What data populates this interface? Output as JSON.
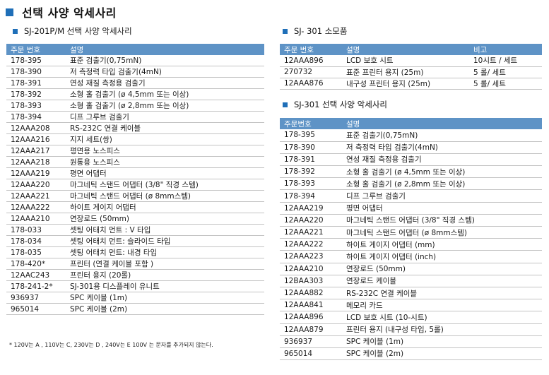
{
  "title": "선택 사양 악세사리",
  "left_section": {
    "title": "SJ-201P/M 선택 사양 악세사리",
    "headers": [
      "주문 번호",
      "설명"
    ],
    "rows": [
      [
        "178-395",
        "표준 검출기(0,75mN)"
      ],
      [
        "178-390",
        "저 측정력 타입 검출기(4mN)"
      ],
      [
        "178-391",
        "연성 재질 측정용 검출기"
      ],
      [
        "178-392",
        "소형 홀 검출기 (ø 4,5mm 또는 이상)"
      ],
      [
        "178-393",
        "소형 홀 검출기 (ø 2,8mm 또는 이상)"
      ],
      [
        "178-394",
        "디프 그루브 검출기"
      ],
      [
        "12AAA208",
        "RS-232C 연결 케이블"
      ],
      [
        "12AAA216",
        "지지 세트(쌍)"
      ],
      [
        "12AAA217",
        "평면용 노스피스"
      ],
      [
        "12AAA218",
        "원통용 노스피스"
      ],
      [
        "12AAA219",
        "평면 어댑터"
      ],
      [
        "12AAA220",
        "마그네틱 스탠드 어댑터 (3/8\" 직경 스템)"
      ],
      [
        "12AAA221",
        "마그네틱 스탠드 어댑터 (ø 8mm스템)"
      ],
      [
        "12AAA222",
        "하이트 게이지 어댑터"
      ],
      [
        "12AAA210",
        "연장로드 (50mm)"
      ],
      [
        "178-033",
        "셋팅 어태치 먼트 : V 타입"
      ],
      [
        "178-034",
        "셋팅 어태치 먼트: 슬라이드 타입"
      ],
      [
        "178-035",
        "셋팅 어태치 먼트: 내경 타입"
      ],
      [
        "178-420*",
        "프린터 (연결 케이블 포함 )"
      ],
      [
        "12AAC243",
        "프린터 용지 (20롤)"
      ],
      [
        "178-241-2*",
        "SJ-301용 디스플레이 유니트"
      ],
      [
        "936937",
        "SPC 케이블 (1m)"
      ],
      [
        "965014",
        "SPC 케이블 (2m)"
      ]
    ],
    "footnote": "* 120V는 A , 110V는  C,  230V는  D ,  240V는 E 100V 는  문자를 추가되지 않는다."
  },
  "consumables_section": {
    "title": "SJ- 301 소모품",
    "headers": [
      "주문 번호",
      "설명",
      "비고"
    ],
    "rows": [
      [
        "12AAA896",
        "LCD 보호 시트",
        "10시트 / 세트"
      ],
      [
        "270732",
        "표준 프린터 용지 (25m)",
        "5 롤/ 세트"
      ],
      [
        "12AAA876",
        "내구성 프린터 용지  (25m)",
        "5 롤/ 세트"
      ]
    ]
  },
  "right_section": {
    "title": "SJ-301 선택 사양 악세사리",
    "headers": [
      "주문번호",
      "설명"
    ],
    "rows": [
      [
        "178-395",
        "표준 검출기(0,75mN)"
      ],
      [
        "178-390",
        "저 측정력 타입 검출기(4mN)"
      ],
      [
        "178-391",
        "연성 재질 측정용 검출기"
      ],
      [
        "178-392",
        "소형 홀 검출기 (ø 4,5mm 또는 이상)"
      ],
      [
        "178-393",
        "소형 홀 검출기 (ø 2,8mm 또는 이상)"
      ],
      [
        "178-394",
        "디프 그루브 검출기"
      ],
      [
        "12AAA219",
        "평면 어댑터"
      ],
      [
        "12AAA220",
        "마그네틱 스탠드 어댑터 (3/8\" 직경 스템)"
      ],
      [
        "12AAA221",
        "마그네틱 스탠드 어댑터 (ø 8mm스템)"
      ],
      [
        "12AAA222",
        "하이트 게이지 어댑터 (mm)"
      ],
      [
        "12AAA223",
        "하이트 게이지 어댑터 (inch)"
      ],
      [
        "12AAA210",
        "연장로드 (50mm)"
      ],
      [
        "12BAA303",
        "연장로드 케이블"
      ],
      [
        "12AAA882",
        "RS-232C 연결 케이블"
      ],
      [
        "12AAA841",
        "메모리 카드"
      ],
      [
        "12AAA896",
        "LCD 보호 시트 (10-시트)"
      ],
      [
        "12AAA879",
        "프린터 용지 (내구성 타입, 5롤)"
      ],
      [
        "936937",
        "SPC 케이블 (1m)"
      ],
      [
        "965014",
        "SPC 케이블 (2m)"
      ]
    ]
  },
  "colors": {
    "accent": "#1f6fb8",
    "header_bg": "#5e93c6",
    "row_border": "#c3c3c3"
  }
}
